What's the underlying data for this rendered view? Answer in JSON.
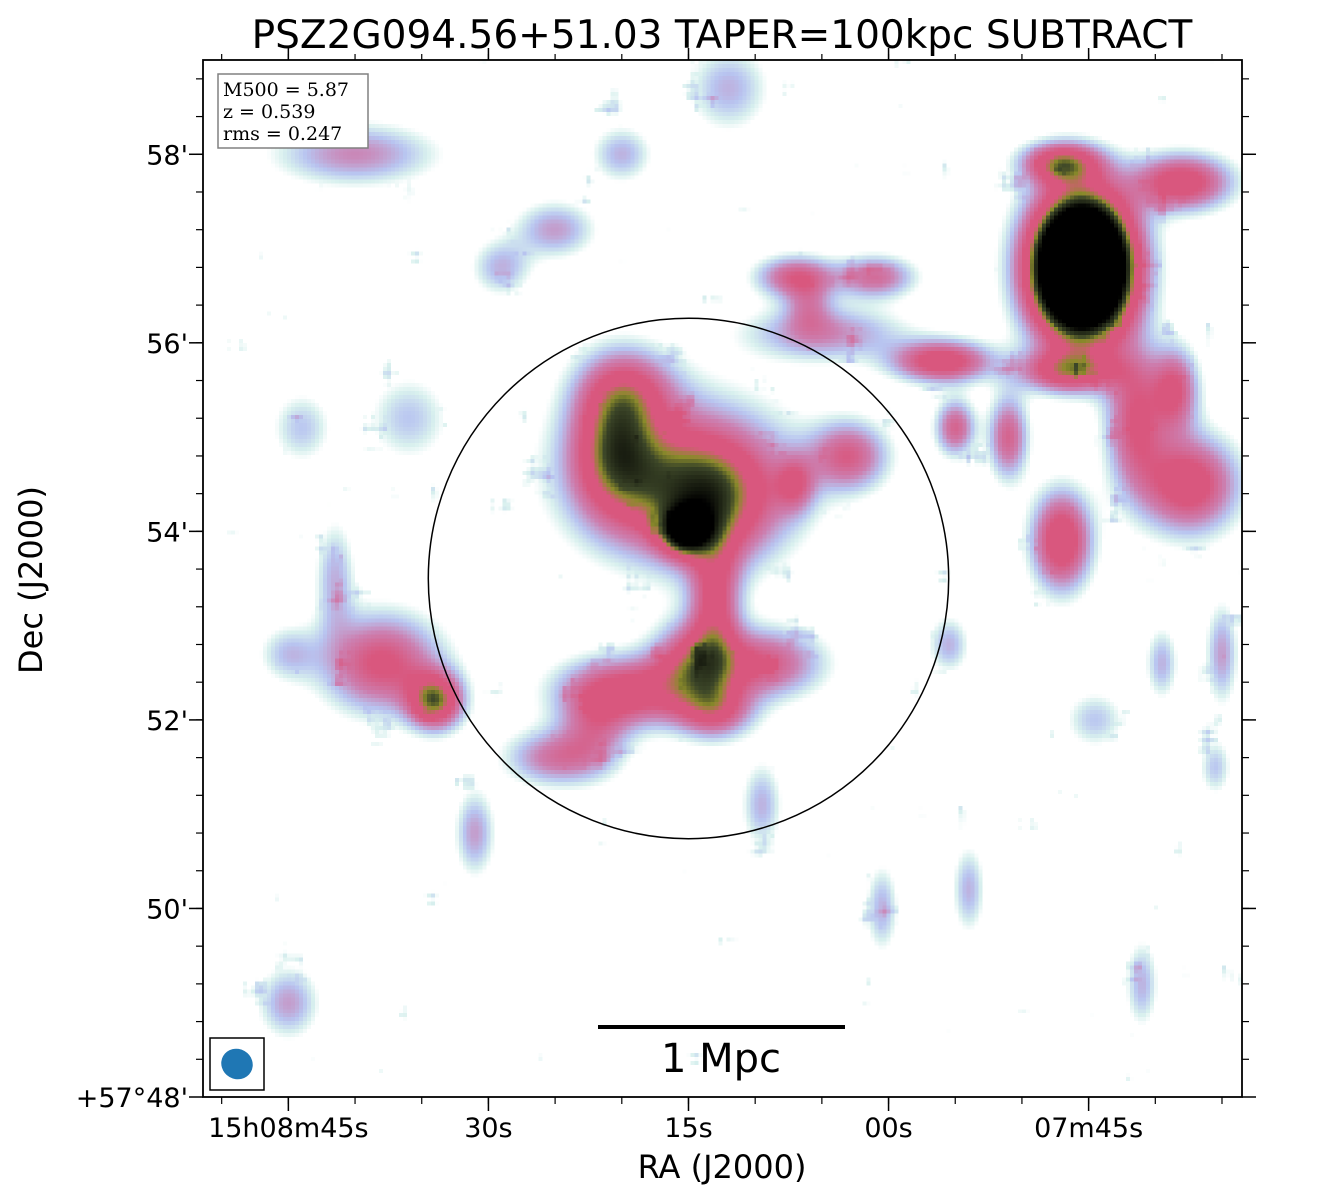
{
  "chart_data": {
    "type": "heatmap",
    "title": "PSZ2G094.56+51.03 TAPER=100kpc SUBTRACT",
    "xlabel": "RA (J2000)",
    "ylabel": "Dec (J2000)",
    "x_ticks": [
      {
        "label": "15h08m45s",
        "ra_sec": 45
      },
      {
        "label": "30s",
        "ra_sec": 30
      },
      {
        "label": "15s",
        "ra_sec": 15
      },
      {
        "label": "00s",
        "ra_sec": 0
      },
      {
        "label": "07m45s",
        "ra_sec": -15
      }
    ],
    "y_ticks": [
      {
        "label": "58'",
        "dec_arcmin": 58
      },
      {
        "label": "56'",
        "dec_arcmin": 56
      },
      {
        "label": "54'",
        "dec_arcmin": 54
      },
      {
        "label": "52'",
        "dec_arcmin": 52
      },
      {
        "label": "50'",
        "dec_arcmin": 50
      },
      {
        "label": "+57°48'",
        "dec_arcmin": 48
      }
    ],
    "xlim": [
      51.4,
      -26.5
    ],
    "ylim": [
      48.0,
      59.0
    ],
    "info_box": [
      "M500 = 5.87",
      "z = 0.539",
      "rms = 0.247"
    ],
    "scalebar_label": "1 Mpc",
    "circle": {
      "center_ra_sec": 15.0,
      "center_dec_arcmin": 53.5,
      "radius_arcmin": 2.76
    },
    "colors": {
      "faint": "#d8f0ee",
      "low": "#b8c4f0",
      "mid": "#cc7fb0",
      "high": "#d9577e",
      "peak": "#8a8a2a",
      "saturated": "#000000",
      "beam": "#1f77b4"
    },
    "blobs": [
      {
        "ra": 15.8,
        "dec": 54.6,
        "sra": 5.5,
        "sdec": 0.55,
        "amp": 0.62
      },
      {
        "ra": 20.5,
        "dec": 54.9,
        "sra": 2.2,
        "sdec": 0.5,
        "amp": 0.7
      },
      {
        "ra": 13.5,
        "dec": 54.3,
        "sra": 3.5,
        "sdec": 0.45,
        "amp": 0.65
      },
      {
        "ra": 15.2,
        "dec": 54.0,
        "sra": 1.2,
        "sdec": 0.16,
        "amp": 1.0
      },
      {
        "ra": 19.5,
        "dec": 55.5,
        "sra": 2.5,
        "sdec": 0.3,
        "amp": 0.45
      },
      {
        "ra": 13.0,
        "dec": 53.2,
        "sra": 1.3,
        "sdec": 0.55,
        "amp": 0.6
      },
      {
        "ra": 14.8,
        "dec": 52.6,
        "sra": 2.0,
        "sdec": 0.3,
        "amp": 0.6
      },
      {
        "ra": 19.5,
        "dec": 52.3,
        "sra": 3.5,
        "sdec": 0.25,
        "amp": 0.7
      },
      {
        "ra": 25.0,
        "dec": 51.6,
        "sra": 2.5,
        "sdec": 0.2,
        "amp": 0.45
      },
      {
        "ra": 9.5,
        "dec": 52.6,
        "sra": 3.0,
        "sdec": 0.25,
        "amp": 0.6
      },
      {
        "ra": 13.0,
        "dec": 52.1,
        "sra": 2.0,
        "sdec": 0.2,
        "amp": 0.55
      },
      {
        "ra": 38.0,
        "dec": 52.6,
        "sra": 3.0,
        "sdec": 0.35,
        "amp": 0.65
      },
      {
        "ra": 34.0,
        "dec": 52.2,
        "sra": 1.4,
        "sdec": 0.2,
        "amp": 0.9
      },
      {
        "ra": 3.0,
        "dec": 54.8,
        "sra": 2.0,
        "sdec": 0.25,
        "amp": 0.55
      },
      {
        "ra": 7.0,
        "dec": 54.5,
        "sra": 1.0,
        "sdec": 0.2,
        "amp": 0.4
      },
      {
        "ra": 4.8,
        "dec": 56.1,
        "sra": 4.0,
        "sdec": 0.2,
        "amp": 0.4
      },
      {
        "ra": 7.0,
        "dec": 56.7,
        "sra": 2.0,
        "sdec": 0.15,
        "amp": 0.55
      },
      {
        "ra": 1.0,
        "dec": 56.7,
        "sra": 2.0,
        "sdec": 0.15,
        "amp": 0.5
      },
      {
        "ra": -14.5,
        "dec": 56.8,
        "sra": 2.5,
        "sdec": 0.5,
        "amp": 3.0
      },
      {
        "ra": -13.0,
        "dec": 57.9,
        "sra": 2.0,
        "sdec": 0.15,
        "amp": 0.8
      },
      {
        "ra": -22.0,
        "dec": 57.7,
        "sra": 2.5,
        "sdec": 0.2,
        "amp": 0.75
      },
      {
        "ra": -13.5,
        "dec": 55.7,
        "sra": 2.5,
        "sdec": 0.15,
        "amp": 0.7
      },
      {
        "ra": -4.0,
        "dec": 55.8,
        "sra": 2.5,
        "sdec": 0.15,
        "amp": 0.75
      },
      {
        "ra": -9.0,
        "dec": 55.0,
        "sra": 1.0,
        "sdec": 0.3,
        "amp": 0.55
      },
      {
        "ra": -5.0,
        "dec": 55.1,
        "sra": 1.0,
        "sdec": 0.2,
        "amp": 0.55
      },
      {
        "ra": -18.5,
        "dec": 55.2,
        "sra": 1.5,
        "sdec": 0.5,
        "amp": 0.6
      },
      {
        "ra": -22.5,
        "dec": 54.5,
        "sra": 2.5,
        "sdec": 0.35,
        "amp": 0.75
      },
      {
        "ra": -13.0,
        "dec": 53.9,
        "sra": 1.5,
        "sdec": 0.35,
        "amp": 0.8
      },
      {
        "ra": -21.5,
        "dec": 55.5,
        "sra": 1.2,
        "sdec": 0.3,
        "amp": 0.6
      },
      {
        "ra": 9.5,
        "dec": 51.1,
        "sra": 1.0,
        "sdec": 0.3,
        "amp": 0.3
      },
      {
        "ra": 22.0,
        "dec": 51.9,
        "sra": 1.8,
        "sdec": 0.3,
        "amp": 0.35
      },
      {
        "ra": 31.0,
        "dec": 50.8,
        "sra": 1.0,
        "sdec": 0.3,
        "amp": 0.35
      },
      {
        "ra": 45.0,
        "dec": 49.0,
        "sra": 1.5,
        "sdec": 0.25,
        "amp": 0.35
      },
      {
        "ra": 25.0,
        "dec": 57.2,
        "sra": 2.0,
        "sdec": 0.2,
        "amp": 0.35
      },
      {
        "ra": 40.0,
        "dec": 58.0,
        "sra": 4.0,
        "sdec": 0.22,
        "amp": 0.4
      },
      {
        "ra": 12.0,
        "dec": 58.7,
        "sra": 2.0,
        "sdec": 0.3,
        "amp": 0.3
      },
      {
        "ra": 20.0,
        "dec": 58.0,
        "sra": 1.5,
        "sdec": 0.2,
        "amp": 0.3
      },
      {
        "ra": 29.0,
        "dec": 56.8,
        "sra": 1.5,
        "sdec": 0.2,
        "amp": 0.3
      },
      {
        "ra": 41.5,
        "dec": 53.5,
        "sra": 1.0,
        "sdec": 0.4,
        "amp": 0.3
      },
      {
        "ra": 45.0,
        "dec": 52.7,
        "sra": 1.5,
        "sdec": 0.2,
        "amp": 0.25
      },
      {
        "ra": 6.0,
        "dec": 56.4,
        "sra": 1.2,
        "sdec": 0.2,
        "amp": 0.3
      },
      {
        "ra": -20.5,
        "dec": 52.6,
        "sra": 0.8,
        "sdec": 0.25,
        "amp": 0.3
      },
      {
        "ra": -25.0,
        "dec": 52.7,
        "sra": 0.8,
        "sdec": 0.35,
        "amp": 0.35
      },
      {
        "ra": -24.5,
        "dec": 51.5,
        "sra": 0.8,
        "sdec": 0.2,
        "amp": 0.25
      },
      {
        "ra": -6.0,
        "dec": 50.2,
        "sra": 0.8,
        "sdec": 0.3,
        "amp": 0.3
      },
      {
        "ra": 0.5,
        "dec": 50.0,
        "sra": 0.8,
        "sdec": 0.3,
        "amp": 0.3
      },
      {
        "ra": -19.0,
        "dec": 49.2,
        "sra": 0.8,
        "sdec": 0.3,
        "amp": 0.3
      },
      {
        "ra": -4.5,
        "dec": 52.8,
        "sra": 1.0,
        "sdec": 0.2,
        "amp": 0.3
      },
      {
        "ra": -15.5,
        "dec": 52.0,
        "sra": 1.5,
        "sdec": 0.2,
        "amp": 0.25
      },
      {
        "ra": 36.0,
        "dec": 55.2,
        "sra": 2.0,
        "sdec": 0.3,
        "amp": 0.25
      },
      {
        "ra": 44.0,
        "dec": 55.1,
        "sra": 1.5,
        "sdec": 0.25,
        "amp": 0.25
      }
    ]
  }
}
